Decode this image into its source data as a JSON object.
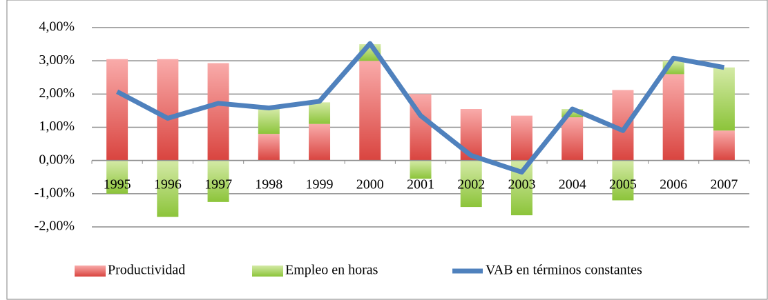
{
  "chart_data": {
    "type": "bar",
    "categories": [
      "1995",
      "1996",
      "1997",
      "1998",
      "1999",
      "2000",
      "2001",
      "2002",
      "2003",
      "2004",
      "2005",
      "2006",
      "2007"
    ],
    "series": [
      {
        "name": "Productividad",
        "type": "bar",
        "color": "#e05a55",
        "values": [
          3.05,
          3.05,
          2.93,
          0.8,
          1.1,
          3.0,
          2.0,
          1.55,
          1.35,
          1.3,
          2.12,
          2.6,
          0.9
        ]
      },
      {
        "name": "Empleo en horas",
        "type": "bar",
        "color": "#a8d45a",
        "values": [
          -1.0,
          -1.7,
          -1.25,
          0.75,
          0.65,
          0.5,
          -0.55,
          -1.4,
          -1.65,
          0.25,
          -1.2,
          0.4,
          1.9
        ]
      },
      {
        "name": "VAB en términos constantes",
        "type": "line",
        "color": "#4f81bd",
        "values": [
          2.07,
          1.27,
          1.72,
          1.58,
          1.78,
          3.52,
          1.35,
          0.15,
          -0.35,
          1.55,
          0.9,
          3.08,
          2.8
        ]
      }
    ],
    "stacked": true,
    "ylim": [
      -2,
      4
    ],
    "yticks": [
      {
        "value": -2,
        "label": "-2,00%"
      },
      {
        "value": -1,
        "label": "-1,00%"
      },
      {
        "value": 0,
        "label": "0,00%"
      },
      {
        "value": 1,
        "label": "1,00%"
      },
      {
        "value": 2,
        "label": "2,00%"
      },
      {
        "value": 3,
        "label": "3,00%"
      },
      {
        "value": 4,
        "label": "4,00%"
      }
    ],
    "grid": true,
    "legend": "bottom"
  }
}
